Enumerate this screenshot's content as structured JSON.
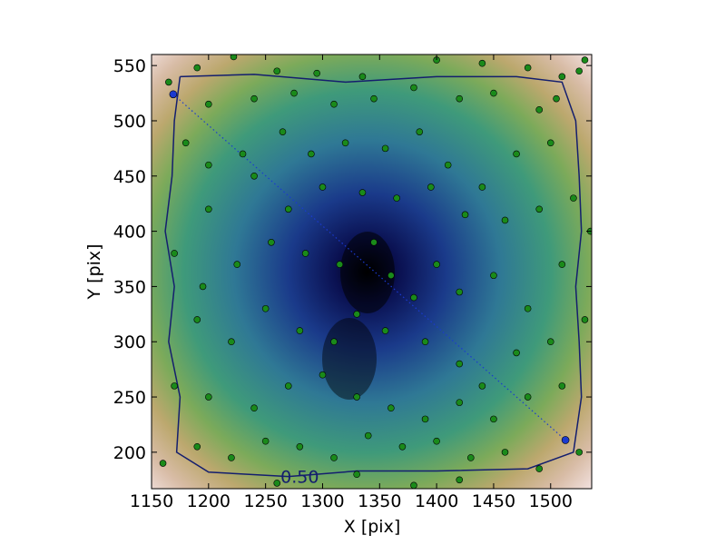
{
  "chart_data": {
    "type": "scatter",
    "x_label": "X [pix]",
    "y_label": "Y [pix]",
    "xlim": [
      1150,
      1536
    ],
    "ylim": [
      167,
      560
    ],
    "xticks": [
      1150,
      1200,
      1250,
      1300,
      1350,
      1400,
      1450,
      1500
    ],
    "yticks": [
      200,
      250,
      300,
      350,
      400,
      450,
      500,
      550
    ],
    "point_color": "#1a8a1a",
    "x": [
      1165,
      1190,
      1222,
      1260,
      1295,
      1335,
      1400,
      1440,
      1480,
      1510,
      1525,
      1530,
      1505,
      1490,
      1450,
      1420,
      1380,
      1345,
      1310,
      1275,
      1240,
      1200,
      1180,
      1200,
      1230,
      1265,
      1290,
      1320,
      1355,
      1385,
      1410,
      1440,
      1470,
      1500,
      1520,
      1535,
      1490,
      1460,
      1425,
      1395,
      1365,
      1335,
      1300,
      1270,
      1240,
      1200,
      1170,
      1195,
      1225,
      1255,
      1285,
      1315,
      1345,
      1360,
      1380,
      1400,
      1420,
      1450,
      1480,
      1510,
      1530,
      1500,
      1470,
      1440,
      1420,
      1390,
      1355,
      1330,
      1310,
      1280,
      1250,
      1220,
      1190,
      1170,
      1200,
      1240,
      1270,
      1300,
      1330,
      1360,
      1390,
      1420,
      1450,
      1480,
      1510,
      1525,
      1490,
      1460,
      1430,
      1400,
      1370,
      1340,
      1310,
      1280,
      1250,
      1220,
      1190,
      1160,
      1420,
      1380,
      1330,
      1260
    ],
    "y": [
      535,
      548,
      558,
      545,
      543,
      540,
      555,
      552,
      548,
      540,
      545,
      555,
      520,
      510,
      525,
      520,
      530,
      520,
      515,
      525,
      520,
      515,
      480,
      460,
      470,
      490,
      470,
      480,
      475,
      490,
      460,
      440,
      470,
      480,
      430,
      400,
      420,
      410,
      415,
      440,
      430,
      435,
      440,
      420,
      450,
      420,
      380,
      350,
      370,
      390,
      380,
      370,
      390,
      360,
      340,
      370,
      345,
      360,
      330,
      370,
      320,
      300,
      290,
      260,
      280,
      300,
      310,
      325,
      300,
      310,
      330,
      300,
      320,
      260,
      250,
      240,
      260,
      270,
      250,
      240,
      230,
      245,
      230,
      250,
      260,
      200,
      185,
      200,
      195,
      210,
      205,
      215,
      195,
      205,
      210,
      195,
      205,
      190,
      175,
      170,
      180,
      172
    ],
    "path_line": {
      "color": "#1a3ad0",
      "x": [
        1169,
        1513
      ],
      "y": [
        524,
        211
      ]
    },
    "contour": {
      "color": "#141e6e",
      "level": {
        "value": 0.5,
        "label": "0.50"
      },
      "x": [
        1175,
        1240,
        1320,
        1400,
        1470,
        1510,
        1522,
        1525,
        1527,
        1522,
        1525,
        1527,
        1520,
        1480,
        1400,
        1330,
        1270,
        1200,
        1172,
        1175,
        1165,
        1170,
        1162,
        1168,
        1170,
        1175
      ],
      "y": [
        540,
        542,
        535,
        540,
        540,
        535,
        500,
        450,
        400,
        350,
        300,
        250,
        200,
        185,
        183,
        183,
        178,
        182,
        200,
        250,
        300,
        350,
        400,
        450,
        500,
        540
      ]
    }
  }
}
